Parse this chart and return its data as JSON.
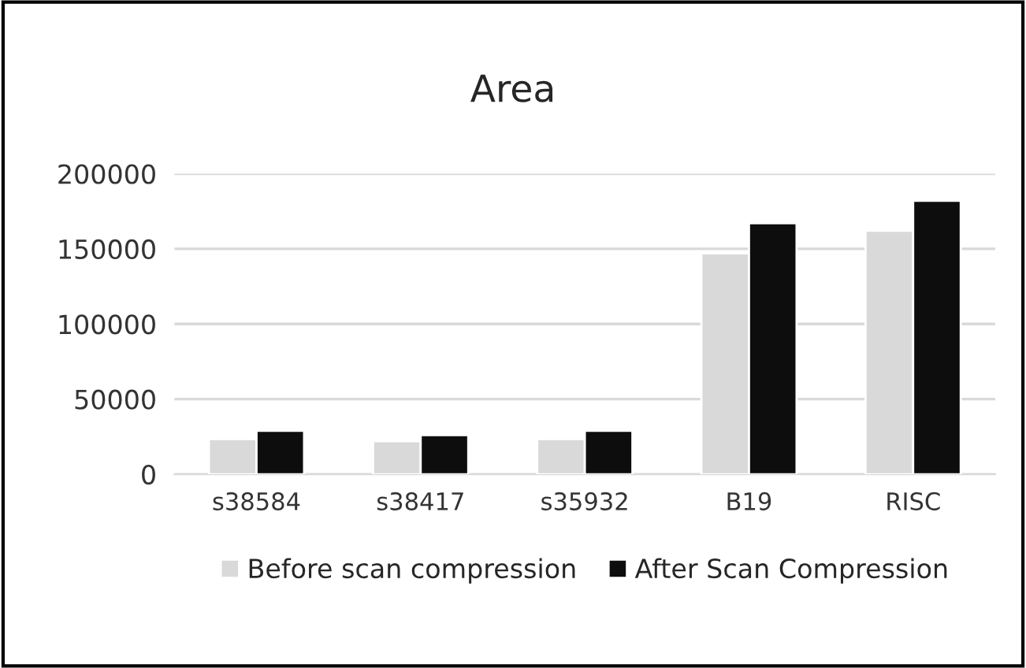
{
  "chart_data": {
    "type": "bar",
    "title": "Area",
    "categories": [
      "s38584",
      "s38417",
      "s35932",
      "B19",
      "RISC"
    ],
    "series": [
      {
        "name": "Before scan compression",
        "color": "#d9d9d9",
        "values": [
          23500,
          22000,
          23500,
          147000,
          162000
        ]
      },
      {
        "name": "After Scan Compression",
        "color": "#0d0d0d",
        "values": [
          29000,
          26000,
          29000,
          167000,
          182000
        ]
      }
    ],
    "ylim": [
      0,
      200000
    ],
    "yticks": [
      0,
      50000,
      100000,
      150000,
      200000
    ],
    "grid": "y",
    "legend": "bottom"
  }
}
